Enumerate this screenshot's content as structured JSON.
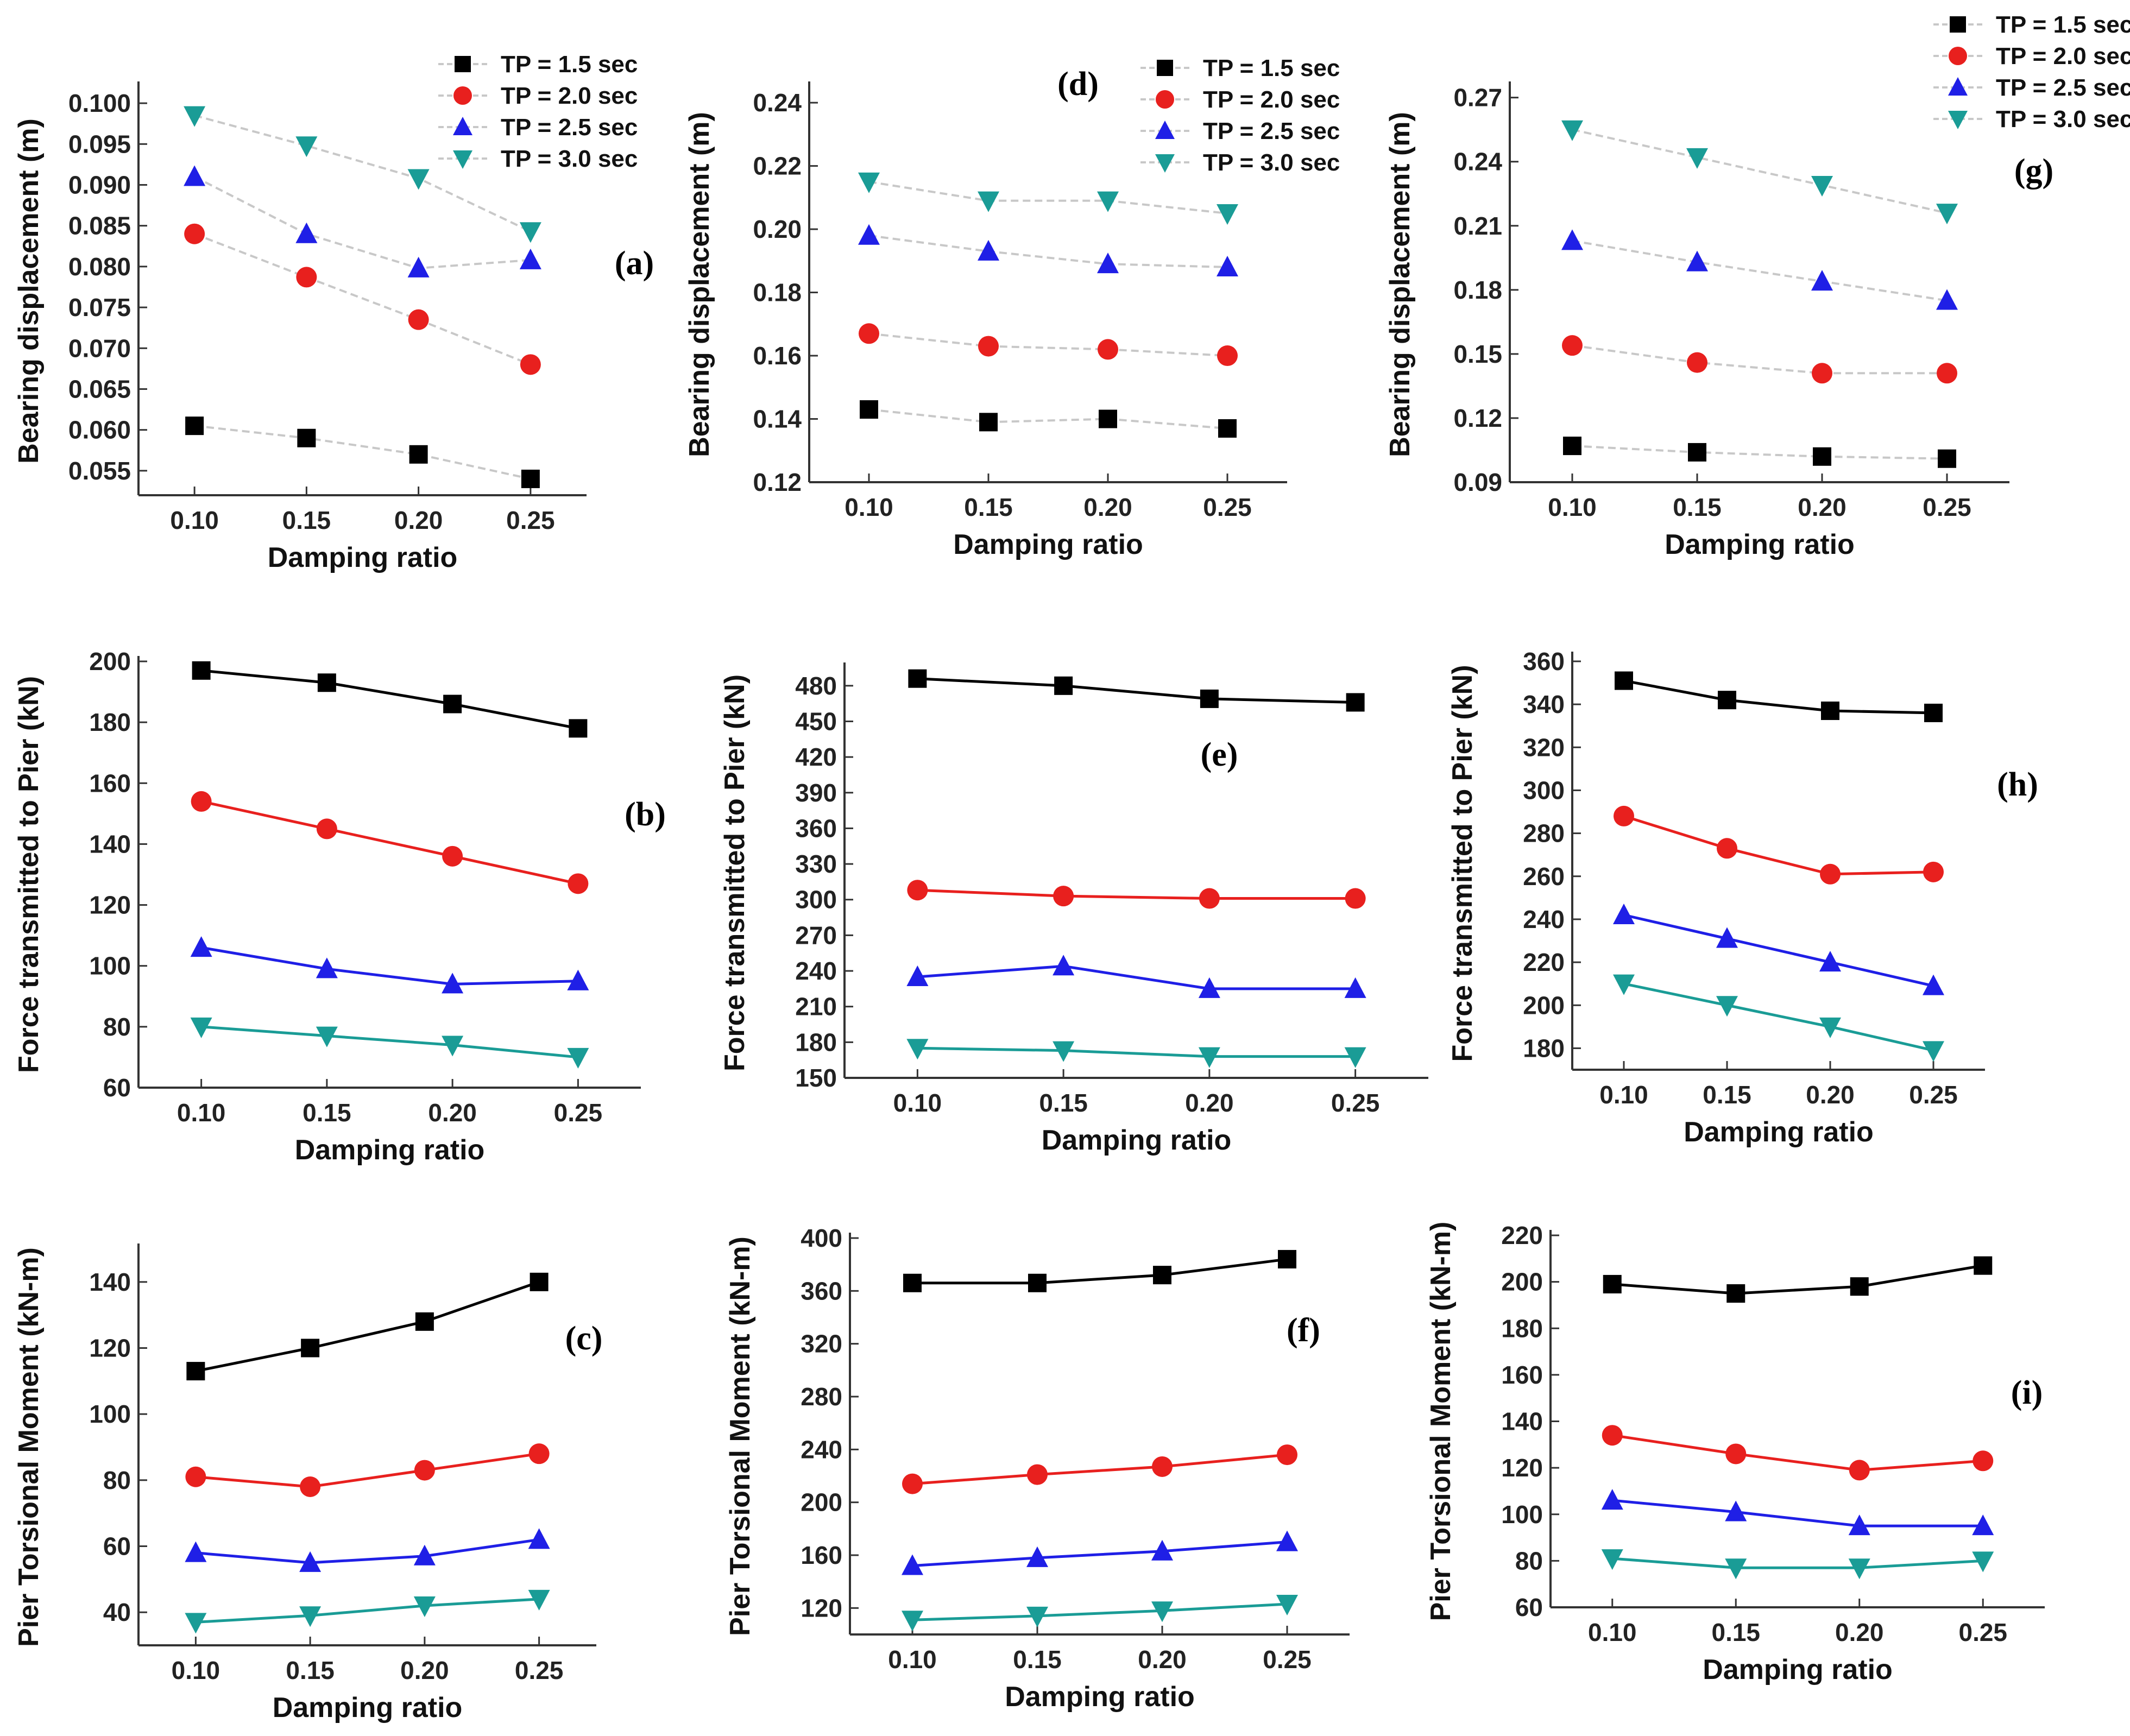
{
  "figure_title": "",
  "chart_data": [
    {
      "id": "a",
      "type": "line",
      "panel_label": "(a)",
      "xlabel": "Damping ratio",
      "ylabel": "Bearing displacement (m)",
      "categories": [
        "0.10",
        "0.15",
        "0.20",
        "0.25"
      ],
      "x": [
        0.1,
        0.15,
        0.2,
        0.25
      ],
      "xlim": [
        0.075,
        0.275
      ],
      "ylim": [
        0.052,
        0.102
      ],
      "yticks": [
        0.055,
        0.06,
        0.065,
        0.07,
        0.075,
        0.08,
        0.085,
        0.09,
        0.095,
        0.1
      ],
      "ytick_labels": [
        "0.055",
        "0.060",
        "0.065",
        "0.070",
        "0.075",
        "0.080",
        "0.085",
        "0.090",
        "0.095",
        "0.100"
      ],
      "line_style": "faint",
      "legend_location": "top-right",
      "series": [
        {
          "name": "TP = 1.5 sec",
          "values": [
            0.0605,
            0.059,
            0.057,
            0.054
          ]
        },
        {
          "name": "TP = 2.0 sec",
          "values": [
            0.084,
            0.0787,
            0.0735,
            0.068
          ]
        },
        {
          "name": "TP = 2.5 sec",
          "values": [
            0.091,
            0.084,
            0.0798,
            0.0808
          ]
        },
        {
          "name": "TP = 3.0 sec",
          "values": [
            0.0985,
            0.0948,
            0.0908,
            0.0843
          ]
        }
      ]
    },
    {
      "id": "d",
      "type": "line",
      "panel_label": "(d)",
      "xlabel": "Damping ratio",
      "ylabel": "Bearing displacement (m)",
      "categories": [
        "0.10",
        "0.15",
        "0.20",
        "0.25"
      ],
      "x": [
        0.1,
        0.15,
        0.2,
        0.25
      ],
      "xlim": [
        0.075,
        0.275
      ],
      "ylim": [
        0.12,
        0.245
      ],
      "yticks": [
        0.12,
        0.14,
        0.16,
        0.18,
        0.2,
        0.22,
        0.24
      ],
      "ytick_labels": [
        "0.12",
        "0.14",
        "0.16",
        "0.18",
        "0.20",
        "0.22",
        "0.24"
      ],
      "line_style": "faint",
      "legend_location": "top-right",
      "series": [
        {
          "name": "TP = 1.5 sec",
          "values": [
            0.143,
            0.139,
            0.14,
            0.137
          ]
        },
        {
          "name": "TP = 2.0 sec",
          "values": [
            0.167,
            0.163,
            0.162,
            0.16
          ]
        },
        {
          "name": "TP = 2.5 sec",
          "values": [
            0.198,
            0.193,
            0.189,
            0.188
          ]
        },
        {
          "name": "TP = 3.0 sec",
          "values": [
            0.215,
            0.209,
            0.209,
            0.205
          ]
        }
      ]
    },
    {
      "id": "g",
      "type": "line",
      "panel_label": "(g)",
      "xlabel": "Damping ratio",
      "ylabel": "Bearing displacement (m)",
      "categories": [
        "0.10",
        "0.15",
        "0.20",
        "0.25"
      ],
      "x": [
        0.1,
        0.15,
        0.2,
        0.25
      ],
      "xlim": [
        0.075,
        0.275
      ],
      "ylim": [
        0.09,
        0.275
      ],
      "yticks": [
        0.09,
        0.12,
        0.15,
        0.18,
        0.21,
        0.24,
        0.27
      ],
      "ytick_labels": [
        "0.09",
        "0.12",
        "0.15",
        "0.18",
        "0.21",
        "0.24",
        "0.27"
      ],
      "line_style": "faint",
      "legend_location": "top-right",
      "series": [
        {
          "name": "TP = 1.5 sec",
          "values": [
            0.107,
            0.104,
            0.102,
            0.101
          ]
        },
        {
          "name": "TP = 2.0 sec",
          "values": [
            0.154,
            0.146,
            0.141,
            0.141
          ]
        },
        {
          "name": "TP = 2.5 sec",
          "values": [
            0.203,
            0.193,
            0.184,
            0.175
          ]
        },
        {
          "name": "TP = 3.0 sec",
          "values": [
            0.255,
            0.242,
            0.229,
            0.216
          ]
        }
      ]
    },
    {
      "id": "b",
      "type": "line",
      "panel_label": "(b)",
      "xlabel": "Damping ratio",
      "ylabel": "Force transmitted to Pier (kN)",
      "categories": [
        "0.10",
        "0.15",
        "0.20",
        "0.25"
      ],
      "x": [
        0.1,
        0.15,
        0.2,
        0.25
      ],
      "xlim": [
        0.075,
        0.275
      ],
      "ylim": [
        60,
        200
      ],
      "yticks": [
        60,
        80,
        100,
        120,
        140,
        160,
        180,
        200
      ],
      "ytick_labels": [
        "60",
        "80",
        "100",
        "120",
        "140",
        "160",
        "180",
        "200"
      ],
      "line_style": "solid",
      "series": [
        {
          "name": "TP = 1.5 sec",
          "values": [
            197,
            193,
            186,
            178
          ]
        },
        {
          "name": "TP = 2.0 sec",
          "values": [
            154,
            145,
            136,
            127
          ]
        },
        {
          "name": "TP = 2.5 sec",
          "values": [
            106,
            99,
            94,
            95
          ]
        },
        {
          "name": "TP = 3.0 sec",
          "values": [
            80,
            77,
            74,
            70
          ]
        }
      ]
    },
    {
      "id": "e",
      "type": "line",
      "panel_label": "(e)",
      "xlabel": "Damping ratio",
      "ylabel": "Force transmitted to Pier (kN)",
      "categories": [
        "0.10",
        "0.15",
        "0.20",
        "0.25"
      ],
      "x": [
        0.1,
        0.15,
        0.2,
        0.25
      ],
      "xlim": [
        0.075,
        0.275
      ],
      "ylim": [
        150,
        495
      ],
      "yticks": [
        150,
        180,
        210,
        240,
        270,
        300,
        330,
        360,
        390,
        420,
        450,
        480
      ],
      "ytick_labels": [
        "150",
        "180",
        "210",
        "240",
        "270",
        "300",
        "330",
        "360",
        "390",
        "420",
        "450",
        "480"
      ],
      "line_style": "solid",
      "series": [
        {
          "name": "TP = 1.5 sec",
          "values": [
            486,
            480,
            469,
            466
          ]
        },
        {
          "name": "TP = 2.0 sec",
          "values": [
            308,
            303,
            301,
            301
          ]
        },
        {
          "name": "TP = 2.5 sec",
          "values": [
            235,
            244,
            225,
            225
          ]
        },
        {
          "name": "TP = 3.0 sec",
          "values": [
            175,
            173,
            168,
            168
          ]
        }
      ]
    },
    {
      "id": "h",
      "type": "line",
      "panel_label": "(h)",
      "xlabel": "Damping ratio",
      "ylabel": "Force transmitted to Pier (kN)",
      "categories": [
        "0.10",
        "0.15",
        "0.20",
        "0.25"
      ],
      "x": [
        0.1,
        0.15,
        0.2,
        0.25
      ],
      "xlim": [
        0.075,
        0.275
      ],
      "ylim": [
        170,
        362
      ],
      "yticks": [
        180,
        200,
        220,
        240,
        260,
        280,
        300,
        320,
        340,
        360
      ],
      "ytick_labels": [
        "180",
        "200",
        "220",
        "240",
        "260",
        "280",
        "300",
        "320",
        "340",
        "360"
      ],
      "line_style": "solid",
      "series": [
        {
          "name": "TP = 1.5 sec",
          "values": [
            351,
            342,
            337,
            336
          ]
        },
        {
          "name": "TP = 2.0 sec",
          "values": [
            288,
            273,
            261,
            262
          ]
        },
        {
          "name": "TP = 2.5 sec",
          "values": [
            242,
            231,
            220,
            209
          ]
        },
        {
          "name": "TP = 3.0 sec",
          "values": [
            210,
            200,
            190,
            179
          ]
        }
      ]
    },
    {
      "id": "c",
      "type": "line",
      "panel_label": "(c)",
      "xlabel": "Damping ratio",
      "ylabel": "Pier Torsional Moment (kN-m)",
      "categories": [
        "0.10",
        "0.15",
        "0.20",
        "0.25"
      ],
      "x": [
        0.1,
        0.15,
        0.2,
        0.25
      ],
      "xlim": [
        0.075,
        0.275
      ],
      "ylim": [
        30,
        150
      ],
      "yticks": [
        40,
        60,
        80,
        100,
        120,
        140
      ],
      "ytick_labels": [
        "40",
        "60",
        "80",
        "100",
        "120",
        "140"
      ],
      "line_style": "solid",
      "series": [
        {
          "name": "TP = 1.5 sec",
          "values": [
            113,
            120,
            128,
            140
          ]
        },
        {
          "name": "TP = 2.0 sec",
          "values": [
            81,
            78,
            83,
            88
          ]
        },
        {
          "name": "TP = 2.5 sec",
          "values": [
            58,
            55,
            57,
            62
          ]
        },
        {
          "name": "TP = 3.0 sec",
          "values": [
            37,
            39,
            42,
            44
          ]
        }
      ]
    },
    {
      "id": "f",
      "type": "line",
      "panel_label": "(f)",
      "xlabel": "Damping ratio",
      "ylabel": "Pier Torsional Moment (kN-m)",
      "categories": [
        "0.10",
        "0.15",
        "0.20",
        "0.25"
      ],
      "x": [
        0.1,
        0.15,
        0.2,
        0.25
      ],
      "xlim": [
        0.075,
        0.275
      ],
      "ylim": [
        100,
        400
      ],
      "yticks": [
        120,
        160,
        200,
        240,
        280,
        320,
        360,
        400
      ],
      "ytick_labels": [
        "120",
        "160",
        "200",
        "240",
        "280",
        "320",
        "360",
        "400"
      ],
      "line_style": "solid",
      "series": [
        {
          "name": "TP = 1.5 sec",
          "values": [
            366,
            366,
            372,
            384
          ]
        },
        {
          "name": "TP = 2.0 sec",
          "values": [
            214,
            221,
            227,
            236
          ]
        },
        {
          "name": "TP = 2.5 sec",
          "values": [
            152,
            158,
            163,
            170
          ]
        },
        {
          "name": "TP = 3.0 sec",
          "values": [
            111,
            114,
            118,
            123
          ]
        }
      ]
    },
    {
      "id": "i",
      "type": "line",
      "panel_label": "(i)",
      "xlabel": "Damping ratio",
      "ylabel": "Pier Torsional Moment (kN-m)",
      "categories": [
        "0.10",
        "0.15",
        "0.20",
        "0.25"
      ],
      "x": [
        0.1,
        0.15,
        0.2,
        0.25
      ],
      "xlim": [
        0.075,
        0.275
      ],
      "ylim": [
        60,
        220
      ],
      "yticks": [
        60,
        80,
        100,
        120,
        140,
        160,
        180,
        200,
        220
      ],
      "ytick_labels": [
        "60",
        "80",
        "100",
        "120",
        "140",
        "160",
        "180",
        "200",
        "220"
      ],
      "line_style": "solid",
      "series": [
        {
          "name": "TP = 1.5 sec",
          "values": [
            199,
            195,
            198,
            207
          ]
        },
        {
          "name": "TP = 2.0 sec",
          "values": [
            134,
            126,
            119,
            123
          ]
        },
        {
          "name": "TP = 2.5 sec",
          "values": [
            106,
            101,
            95,
            95
          ]
        },
        {
          "name": "TP = 3.0 sec",
          "values": [
            81,
            77,
            77,
            80
          ]
        }
      ]
    }
  ],
  "series_styles": [
    {
      "name": "TP = 1.5 sec",
      "marker": "square",
      "color": "#000000",
      "line_color": "#000000"
    },
    {
      "name": "TP = 2.0 sec",
      "marker": "circle",
      "color": "#e8201e",
      "line_color": "#e8201e"
    },
    {
      "name": "TP = 2.5 sec",
      "marker": "triangle-up",
      "color": "#1f1fe6",
      "line_color": "#1f1fe6"
    },
    {
      "name": "TP = 3.0 sec",
      "marker": "triangle-down",
      "color": "#1a9c96",
      "line_color": "#1a9c96"
    }
  ],
  "faint_line_color": "#c8c8c8"
}
